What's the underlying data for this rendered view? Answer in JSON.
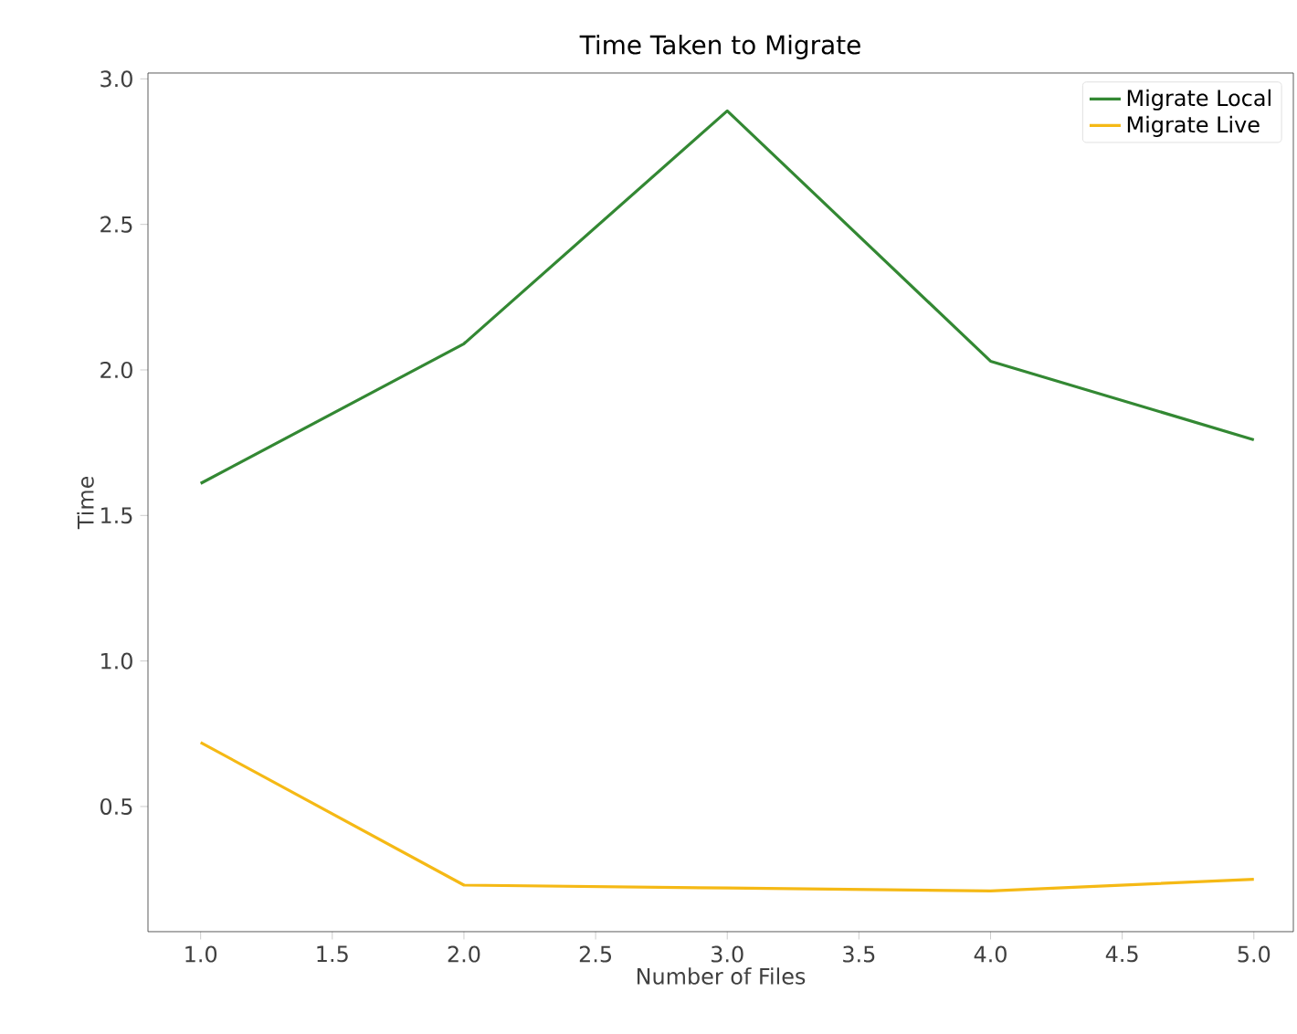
{
  "chart_data": {
    "type": "line",
    "title": "Time Taken to Migrate",
    "xlabel": "Number of Files",
    "ylabel": "Time",
    "x": [
      1,
      2,
      3,
      4,
      5
    ],
    "series": [
      {
        "name": "Migrate Local",
        "color": "#338833",
        "values": [
          1.61,
          2.09,
          2.89,
          2.03,
          1.76
        ]
      },
      {
        "name": "Migrate Live",
        "color": "#f5b915",
        "values": [
          0.72,
          0.23,
          0.22,
          0.21,
          0.25
        ]
      }
    ],
    "xlim": [
      0.8,
      5.15
    ],
    "ylim": [
      0.07,
      3.02
    ],
    "xticks": [
      {
        "value": 1,
        "label": "1.0"
      },
      1.5,
      {
        "value": 2,
        "label": "2.0"
      },
      2.5,
      {
        "value": 3,
        "label": "3.0"
      },
      3.5,
      {
        "value": 4,
        "label": "4.0"
      },
      4.5,
      {
        "value": 5,
        "label": "5.0"
      }
    ],
    "yticks": [
      0.5,
      {
        "value": 1,
        "label": "1.0"
      },
      1.5,
      {
        "value": 2,
        "label": "2.0"
      },
      2.5,
      {
        "value": 3,
        "label": "3.0"
      }
    ],
    "grid": false,
    "legend": "top right",
    "marker": "none",
    "line_style": "solid"
  }
}
